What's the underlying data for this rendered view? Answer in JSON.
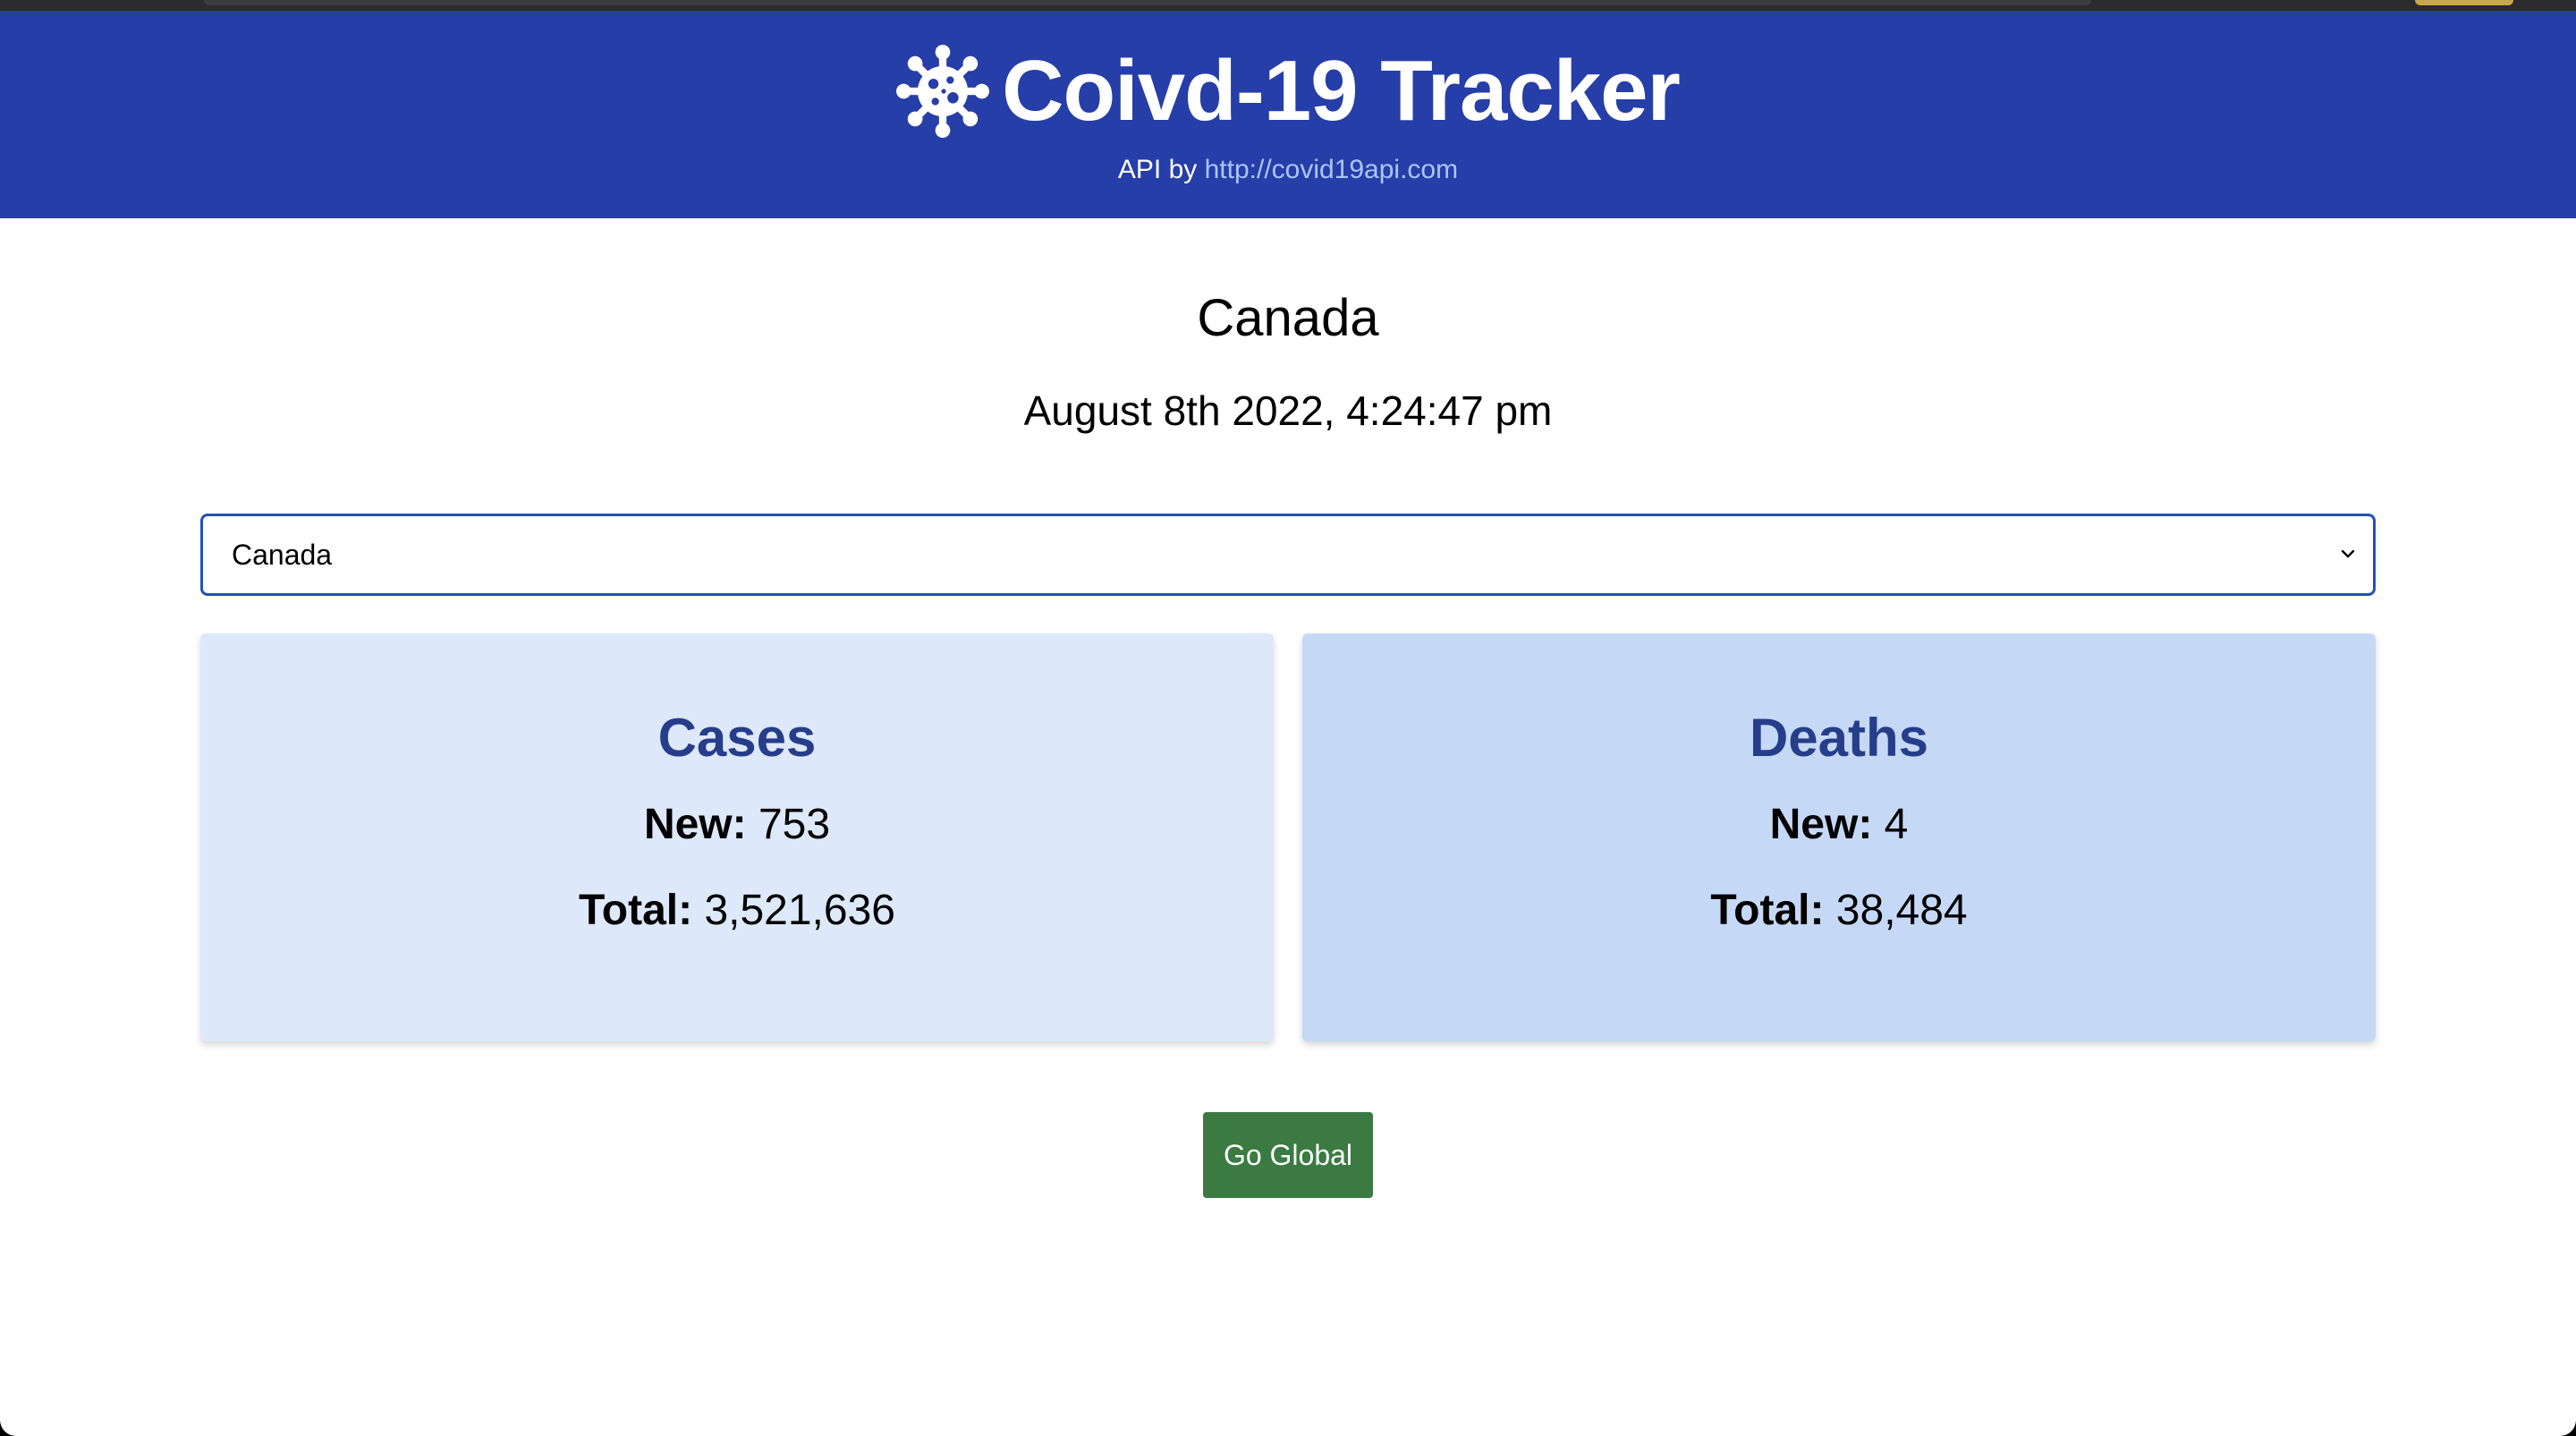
{
  "header": {
    "title": "Coivd-19 Tracker",
    "icon": "virus-icon",
    "api_prefix": "API by",
    "api_link": "http://covid19api.com",
    "background_color": "#263ea8",
    "link_color": "#a9c6ff"
  },
  "main": {
    "country": "Canada",
    "date": "August 8th 2022, 4:24:47 pm",
    "country_select": {
      "selected": "Canada",
      "icon": "chevron-down-icon",
      "border_color": "#2152b8"
    },
    "cards": {
      "cases": {
        "title": "Cases",
        "new_label": "New:",
        "new_value": "753",
        "total_label": "Total:",
        "total_value": "3,521,636",
        "background_color": "#dde8fa"
      },
      "deaths": {
        "title": "Deaths",
        "new_label": "New:",
        "new_value": "4",
        "total_label": "Total:",
        "total_value": "38,484",
        "background_color": "#c5d9f7"
      }
    },
    "go_global_button": {
      "label": "Go Global",
      "background_color": "#3b7b41"
    }
  }
}
